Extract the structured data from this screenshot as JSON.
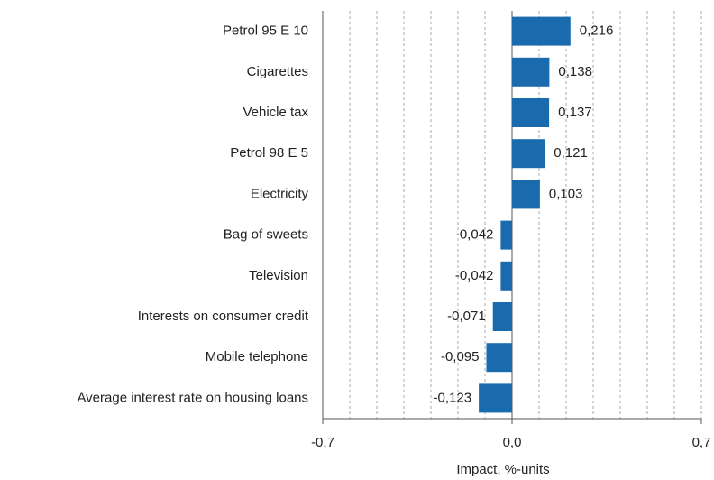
{
  "chart_data": {
    "type": "bar",
    "orientation": "horizontal",
    "categories": [
      "Petrol 95 E 10",
      "Cigarettes",
      "Vehicle tax",
      "Petrol 98 E 5",
      "Electricity",
      "Bag of sweets",
      "Television",
      "Interests on consumer credit",
      "Mobile telephone",
      "Average interest rate on housing loans"
    ],
    "values": [
      0.216,
      0.138,
      0.137,
      0.121,
      0.103,
      -0.042,
      -0.042,
      -0.071,
      -0.095,
      -0.123
    ],
    "value_labels": [
      "0,216",
      "0,138",
      "0,137",
      "0,121",
      "0,103",
      "-0,042",
      "-0,042",
      "-0,071",
      "-0,095",
      "-0,123"
    ],
    "color": "#1a6aae",
    "xlabel": "Impact, %-units",
    "xlim": [
      -0.7,
      0.7
    ],
    "xticks": [
      {
        "value": -0.7,
        "label": "-0,7"
      },
      {
        "value": 0,
        "label": "0,0"
      },
      {
        "value": 0.7,
        "label": "0,7"
      }
    ],
    "xminor": [
      -0.6,
      -0.5,
      -0.4,
      -0.3,
      -0.2,
      -0.1,
      0.1,
      0.2,
      0.3,
      0.4,
      0.5,
      0.6
    ],
    "grid": true
  }
}
